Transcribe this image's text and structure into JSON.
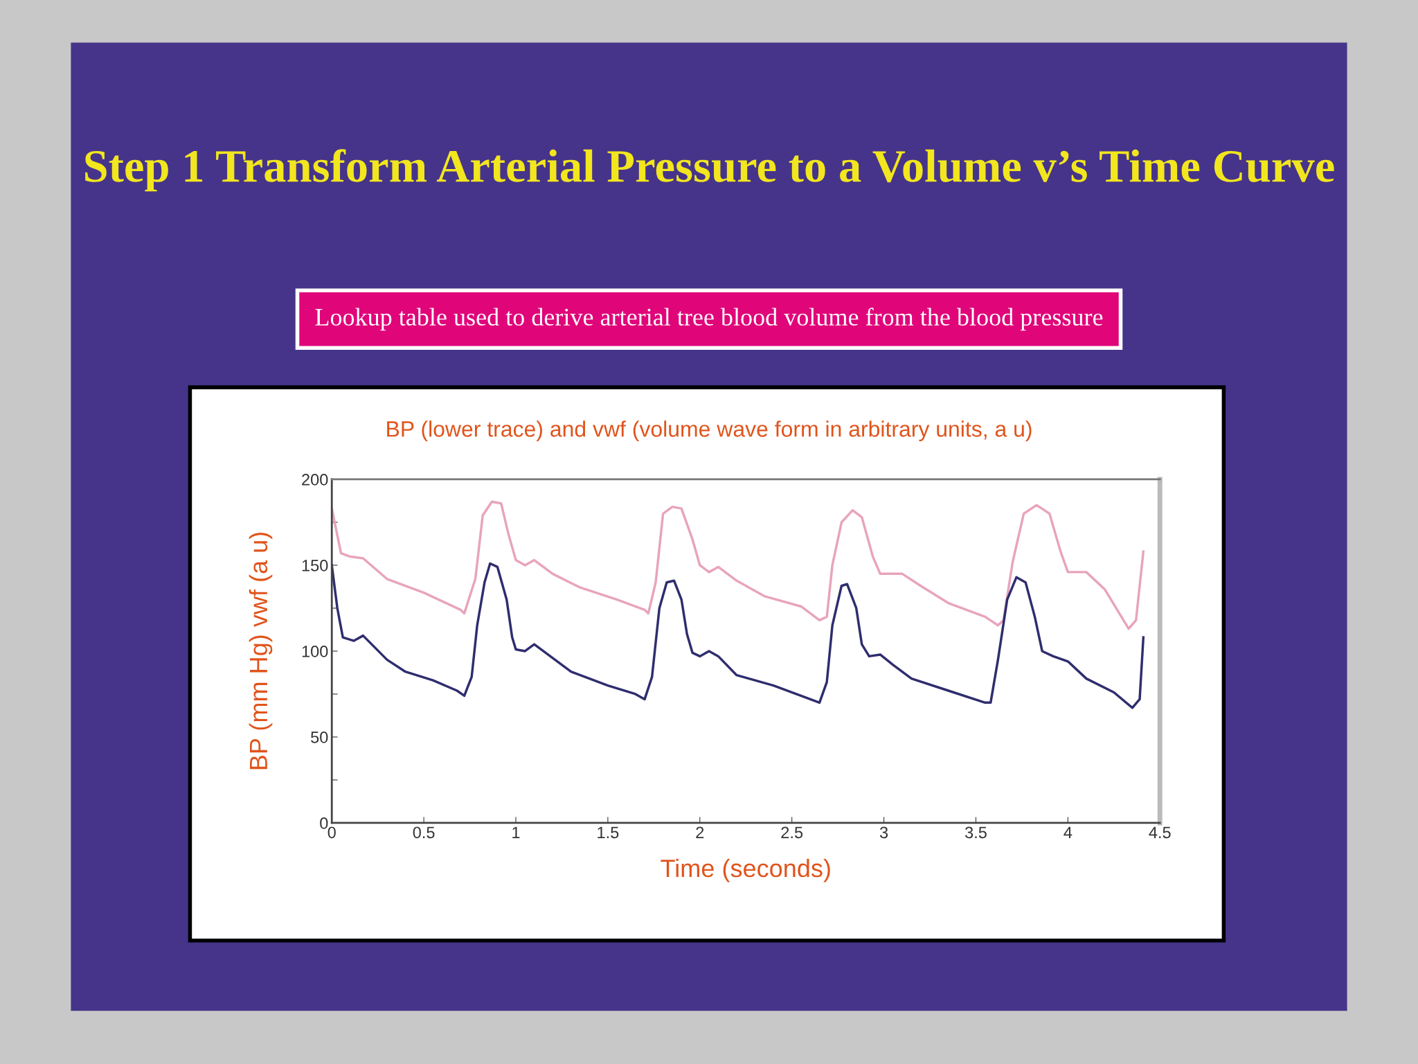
{
  "chart_data": {
    "type": "line",
    "title": "Step 1 Transform Arterial Pressure to a Volume v’s Time Curve",
    "subtitle": "Lookup table used to derive arterial tree blood volume from the blood pressure",
    "annotations": [
      "BP (lower trace) and vwf (volume wave form in arbitrary units, a u)"
    ],
    "xlabel": "Time (seconds)",
    "ylabel": "BP (mm Hg) vwf (a u)",
    "xlim": [
      0,
      4.5
    ],
    "ylim": [
      0,
      200
    ],
    "xticks": [
      0,
      0.5,
      1,
      1.5,
      2,
      2.5,
      3,
      3.5,
      4,
      4.5
    ],
    "yticks": [
      0,
      {
        "value": 25,
        "label": null
      },
      50,
      {
        "value": 75,
        "label": null
      },
      100,
      {
        "value": 125,
        "label": null
      },
      150,
      {
        "value": 175,
        "label": null
      },
      200
    ],
    "grid": false,
    "legend": false,
    "marker": "none",
    "line_style": "solid",
    "series": [
      {
        "color": "#e8a4bc",
        "x": [
          0,
          0.05,
          0.1,
          0.17,
          0.3,
          0.5,
          0.7,
          0.72,
          0.78,
          0.82,
          0.87,
          0.92,
          0.96,
          1.0,
          1.05,
          1.1,
          1.2,
          1.35,
          1.55,
          1.7,
          1.72,
          1.76,
          1.8,
          1.85,
          1.9,
          1.96,
          2.0,
          2.05,
          2.1,
          2.2,
          2.35,
          2.55,
          2.65,
          2.69,
          2.72,
          2.77,
          2.83,
          2.88,
          2.94,
          2.98,
          3.1,
          3.2,
          3.35,
          3.55,
          3.62,
          3.65,
          3.7,
          3.76,
          3.83,
          3.9,
          3.96,
          4.0,
          4.1,
          4.2,
          4.33,
          4.37,
          4.41
        ],
        "values": [
          183,
          157,
          155,
          154,
          142,
          134,
          124,
          122,
          142,
          179,
          187,
          186,
          168,
          153,
          150,
          153,
          145,
          137,
          130,
          124,
          122,
          140,
          180,
          184,
          183,
          165,
          150,
          146,
          149,
          141,
          132,
          126,
          118,
          120,
          150,
          175,
          182,
          178,
          155,
          145,
          145,
          138,
          128,
          120,
          115,
          118,
          152,
          180,
          185,
          180,
          158,
          146,
          146,
          136,
          113,
          118,
          158
        ]
      },
      {
        "color": "#2f2d6e",
        "x": [
          0,
          0.03,
          0.06,
          0.12,
          0.17,
          0.3,
          0.4,
          0.55,
          0.68,
          0.72,
          0.76,
          0.79,
          0.83,
          0.86,
          0.9,
          0.95,
          0.98,
          1.0,
          1.05,
          1.1,
          1.2,
          1.3,
          1.5,
          1.65,
          1.7,
          1.74,
          1.78,
          1.82,
          1.86,
          1.9,
          1.93,
          1.96,
          2.0,
          2.05,
          2.1,
          2.2,
          2.4,
          2.6,
          2.65,
          2.69,
          2.72,
          2.77,
          2.8,
          2.85,
          2.88,
          2.92,
          2.98,
          3.05,
          3.15,
          3.35,
          3.55,
          3.58,
          3.62,
          3.67,
          3.72,
          3.77,
          3.82,
          3.86,
          3.92,
          4.0,
          4.1,
          4.25,
          4.35,
          4.39,
          4.41
        ],
        "values": [
          150,
          125,
          108,
          106,
          109,
          95,
          88,
          83,
          77,
          74,
          85,
          115,
          140,
          151,
          149,
          130,
          108,
          101,
          100,
          104,
          96,
          88,
          80,
          75,
          72,
          85,
          125,
          140,
          141,
          130,
          110,
          99,
          97,
          100,
          97,
          86,
          80,
          72,
          70,
          82,
          115,
          138,
          139,
          125,
          104,
          97,
          98,
          92,
          84,
          77,
          70,
          70,
          95,
          130,
          143,
          140,
          120,
          100,
          97,
          94,
          84,
          76,
          67,
          72,
          108
        ]
      }
    ]
  }
}
